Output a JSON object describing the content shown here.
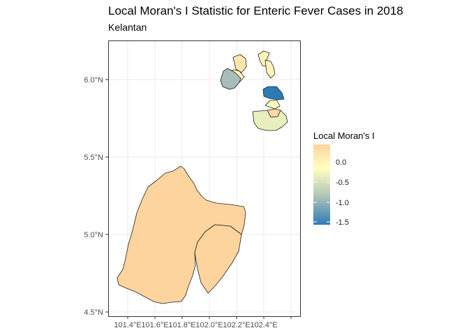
{
  "title": "Local Moran's I Statistic for Enteric Fever Cases in 2018",
  "subtitle": "Kelantan",
  "map": {
    "x_tick_labels": [
      "101.4°E",
      "101.6°E",
      "101.8°E",
      "102.0°E",
      "102.2°E",
      "102.4°E"
    ],
    "y_tick_labels": [
      "4.5°N",
      "5.0°N",
      "5.5°N",
      "6.0°N"
    ],
    "grid": true,
    "fill_color": "#FDD49E",
    "districts": [
      {
        "value": 0.35
      },
      {
        "value": 0.35
      },
      {
        "value": 0.2
      },
      {
        "value": 0.05
      },
      {
        "value": -0.6
      },
      {
        "value": 0.1
      },
      {
        "value": 0.1
      },
      {
        "value": -1.6
      },
      {
        "value": 0.0
      },
      {
        "value": 0.3
      },
      {
        "value": -0.15
      }
    ]
  },
  "legend": {
    "title": "Local Moran's I",
    "labels": [
      "0.0",
      "-0.5",
      "-1.0",
      "-1.5"
    ],
    "colors": [
      "#FDD49E",
      "#FFFFBF",
      "#91BFDB",
      "#2C7BB6"
    ]
  }
}
